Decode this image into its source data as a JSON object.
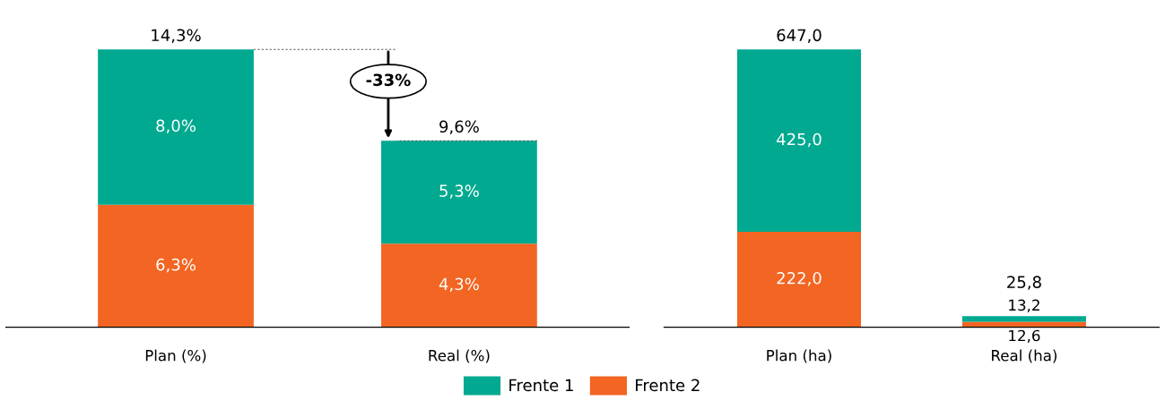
{
  "chart_data": [
    {
      "type": "bar",
      "stacked": true,
      "categories": [
        "Plan (%)",
        "Real (%)"
      ],
      "tick_labels": "x",
      "legend": "bottom",
      "grid": false,
      "series": [
        {
          "name": "Frente 2",
          "color": "#f26522",
          "values": [
            6.3,
            4.3
          ],
          "value_labels": [
            "6,3%",
            "4,3%"
          ]
        },
        {
          "name": "Frente 1",
          "color": "#00a98f",
          "values": [
            8.0,
            5.3
          ],
          "value_labels": [
            "8,0%",
            "5,3%"
          ]
        }
      ],
      "totals": [
        "14,3%",
        "9,6%"
      ],
      "annotations": [
        "-33%"
      ]
    },
    {
      "type": "bar",
      "stacked": true,
      "categories": [
        "Plan (ha)",
        "Real (ha)"
      ],
      "tick_labels": "x",
      "legend": "bottom",
      "grid": false,
      "series": [
        {
          "name": "Frente 2",
          "color": "#f26522",
          "values": [
            222.0,
            12.6
          ],
          "value_labels": [
            "222,0",
            "12,6"
          ]
        },
        {
          "name": "Frente 1",
          "color": "#00a98f",
          "values": [
            425.0,
            13.2
          ],
          "value_labels": [
            "425,0",
            "13,2"
          ]
        }
      ],
      "totals": [
        "647,0",
        "25,8"
      ]
    }
  ]
}
